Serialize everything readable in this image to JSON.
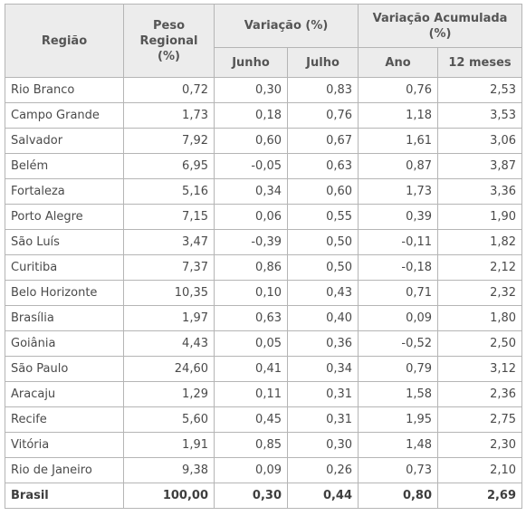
{
  "table": {
    "headers": {
      "region": "Região",
      "weight": "Peso Regional (%)",
      "variation": "Variação (%)",
      "accumulated": "Variação Acumulada (%)",
      "june": "Junho",
      "july": "Julho",
      "year": "Ano",
      "months12": "12 meses"
    },
    "rows": [
      {
        "region": "Rio Branco",
        "weight": "0,72",
        "june": "0,30",
        "july": "0,83",
        "year": "0,76",
        "months12": "2,53"
      },
      {
        "region": "Campo Grande",
        "weight": "1,73",
        "june": "0,18",
        "july": "0,76",
        "year": "1,18",
        "months12": "3,53"
      },
      {
        "region": "Salvador",
        "weight": "7,92",
        "june": "0,60",
        "july": "0,67",
        "year": "1,61",
        "months12": "3,06"
      },
      {
        "region": "Belém",
        "weight": "6,95",
        "june": "-0,05",
        "july": "0,63",
        "year": "0,87",
        "months12": "3,87"
      },
      {
        "region": "Fortaleza",
        "weight": "5,16",
        "june": "0,34",
        "july": "0,60",
        "year": "1,73",
        "months12": "3,36"
      },
      {
        "region": "Porto Alegre",
        "weight": "7,15",
        "june": "0,06",
        "july": "0,55",
        "year": "0,39",
        "months12": "1,90"
      },
      {
        "region": "São Luís",
        "weight": "3,47",
        "june": "-0,39",
        "july": "0,50",
        "year": "-0,11",
        "months12": "1,82"
      },
      {
        "region": "Curitiba",
        "weight": "7,37",
        "june": "0,86",
        "july": "0,50",
        "year": "-0,18",
        "months12": "2,12"
      },
      {
        "region": "Belo Horizonte",
        "weight": "10,35",
        "june": "0,10",
        "july": "0,43",
        "year": "0,71",
        "months12": "2,32"
      },
      {
        "region": "Brasília",
        "weight": "1,97",
        "june": "0,63",
        "july": "0,40",
        "year": "0,09",
        "months12": "1,80"
      },
      {
        "region": "Goiânia",
        "weight": "4,43",
        "june": "0,05",
        "july": "0,36",
        "year": "-0,52",
        "months12": "2,50"
      },
      {
        "region": "São Paulo",
        "weight": "24,60",
        "june": "0,41",
        "july": "0,34",
        "year": "0,79",
        "months12": "3,12"
      },
      {
        "region": "Aracaju",
        "weight": "1,29",
        "june": "0,11",
        "july": "0,31",
        "year": "1,58",
        "months12": "2,36"
      },
      {
        "region": "Recife",
        "weight": "5,60",
        "june": "0,45",
        "july": "0,31",
        "year": "1,95",
        "months12": "2,75"
      },
      {
        "region": "Vitória",
        "weight": "1,91",
        "june": "0,85",
        "july": "0,30",
        "year": "1,48",
        "months12": "2,30"
      },
      {
        "region": "Rio de Janeiro",
        "weight": "9,38",
        "june": "0,09",
        "july": "0,26",
        "year": "0,73",
        "months12": "2,10"
      }
    ],
    "total": {
      "region": "Brasil",
      "weight": "100,00",
      "june": "0,30",
      "july": "0,44",
      "year": "0,80",
      "months12": "2,69"
    }
  }
}
